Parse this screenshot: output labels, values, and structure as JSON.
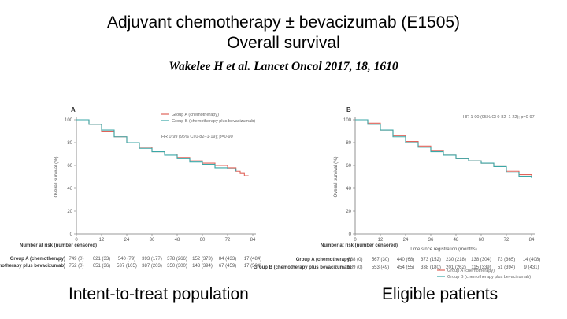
{
  "title_line1": "Adjuvant chemotherapy ± bevacizumab (E1505)",
  "title_line2": "Overall survival",
  "citation": "Wakelee H et al. Lancet Oncol 2017, 18, 1610",
  "chart_data": [
    {
      "type": "line",
      "panel_label": "A",
      "caption": "Intent-to-treat population",
      "ylabel": "Overall survival (%)",
      "xlabel": "",
      "x_ticks": [
        0,
        12,
        24,
        36,
        48,
        60,
        72,
        84
      ],
      "y_ticks": [
        0,
        20,
        40,
        60,
        80,
        100
      ],
      "xlim": [
        0,
        84
      ],
      "ylim": [
        0,
        100
      ],
      "hr_text": "HR 0·99 (95% CI 0·82–1·19); p=0·90",
      "series": [
        {
          "name": "Group A (chemotherapy)",
          "color": "#e0635a",
          "x": [
            0,
            6,
            12,
            18,
            24,
            30,
            36,
            42,
            48,
            54,
            60,
            66,
            72,
            76,
            78,
            80,
            82
          ],
          "y": [
            100,
            96,
            90,
            85,
            80,
            76,
            72,
            70,
            67,
            64,
            62,
            60,
            58,
            55,
            53,
            51,
            51
          ]
        },
        {
          "name": "Group B (chemotherapy plus bevacizumab)",
          "color": "#3aa7a7",
          "x": [
            0,
            6,
            12,
            18,
            24,
            30,
            36,
            42,
            48,
            54,
            60,
            66,
            72,
            76
          ],
          "y": [
            100,
            96,
            91,
            85,
            80,
            75,
            72,
            69,
            66,
            63,
            61,
            58,
            57,
            55
          ]
        }
      ],
      "risk_table": {
        "header": "Number at risk (number censored)",
        "rows": [
          {
            "label": "Group A (chemotherapy)",
            "values": [
              "749 (0)",
              "621 (33)",
              "540 (79)",
              "393 (177)",
              "378 (266)",
              "152 (373)",
              "84 (433)",
              "17 (484)"
            ]
          },
          {
            "label": "Group B (chemotherapy plus bevacizumab)",
            "values": [
              "752 (0)",
              "651 (36)",
              "537 (105)",
              "387 (203)",
              "350 (300)",
              "143 (394)",
              "67 (459)",
              "17 (504)"
            ]
          }
        ]
      }
    },
    {
      "type": "line",
      "panel_label": "B",
      "caption": "Eligible patients",
      "ylabel": "Overall survival (%)",
      "xlabel": "Time since registration (months)",
      "x_ticks": [
        0,
        12,
        24,
        36,
        48,
        60,
        72,
        84
      ],
      "y_ticks": [
        0,
        20,
        40,
        60,
        80,
        100
      ],
      "xlim": [
        0,
        84
      ],
      "ylim": [
        0,
        100
      ],
      "hr_text": "HR 1·00 (95% CI 0·82–1·22); p=0·97",
      "series": [
        {
          "name": "Group A (chemotherapy)",
          "color": "#e0635a",
          "x": [
            0,
            6,
            12,
            18,
            24,
            30,
            36,
            42,
            48,
            54,
            60,
            66,
            72,
            78,
            84
          ],
          "y": [
            100,
            97,
            91,
            86,
            81,
            77,
            73,
            69,
            66,
            64,
            62,
            59,
            55,
            52,
            51
          ]
        },
        {
          "name": "Group B (chemotherapy plus bevacizumab)",
          "color": "#3aa7a7",
          "x": [
            0,
            6,
            12,
            18,
            24,
            30,
            36,
            42,
            48,
            54,
            60,
            66,
            72,
            78,
            84
          ],
          "y": [
            100,
            96,
            91,
            85,
            80,
            76,
            72,
            69,
            66,
            64,
            62,
            59,
            54,
            50,
            49
          ]
        }
      ],
      "risk_table": {
        "header": "Number at risk (number censored)",
        "rows": [
          {
            "label": "Group A (chemotherapy)",
            "values": [
              "638 (0)",
              "567 (30)",
              "440 (68)",
              "373 (152)",
              "230 (218)",
              "138 (304)",
              "73 (365)",
              "14 (408)"
            ]
          },
          {
            "label": "Group B (chemotherapy plus bevacizumab)",
            "values": [
              "639 (0)",
              "553 (49)",
              "454 (55)",
              "338 (180)",
              "201 (262)",
              "115 (339)",
              "51 (394)",
              "9 (431)"
            ]
          }
        ]
      }
    }
  ]
}
